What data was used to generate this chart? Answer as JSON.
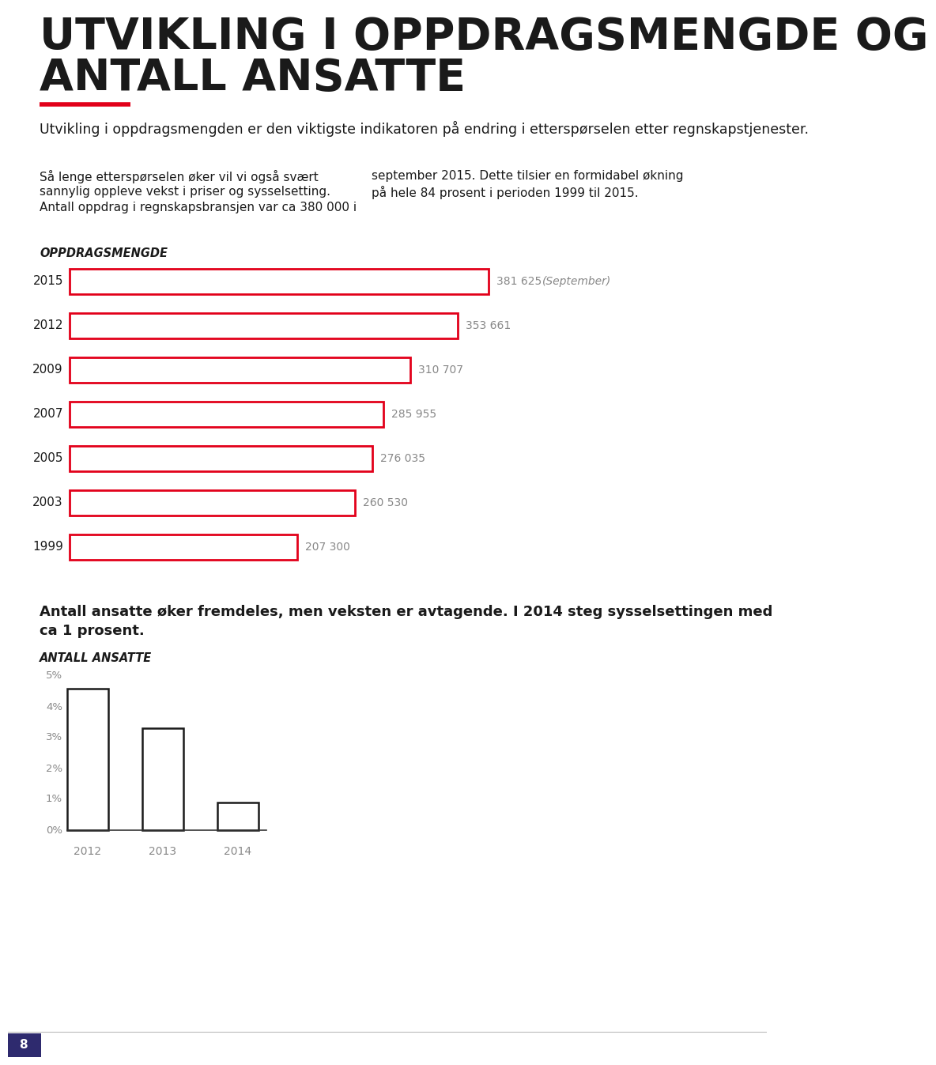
{
  "title_line1": "UTVIKLING I OPPDRAGSMENGDE OG",
  "title_line2": "ANTALL ANSATTE",
  "red_line_color": "#e2001a",
  "intro_text": "Utvikling i oppdragsmengden er den viktigste indikatoren på endring i etterspørselen etter regnskapstjenester.",
  "body_left_lines": [
    "Så lenge etterspørselen øker vil vi også svært",
    "sannylig oppleve vekst i priser og sysselsetting.",
    "Antall oppdrag i regnskapsbransjen var ca 380 000 i"
  ],
  "body_right_lines": [
    "september 2015. Dette tilsier en formidabel økning",
    "på hele 84 prosent i perioden 1999 til 2015."
  ],
  "section1_label": "OPPDRAGSMENGDE",
  "bar_years": [
    "2015",
    "2012",
    "2009",
    "2007",
    "2005",
    "2003",
    "1999"
  ],
  "bar_values": [
    381625,
    353661,
    310707,
    285955,
    276035,
    260530,
    207300
  ],
  "bar_labels": [
    "381 625",
    "353 661",
    "310 707",
    "285 955",
    "276 035",
    "260 530",
    "207 300"
  ],
  "bar_color_fill": "#ffffff",
  "bar_color_edge": "#e2001a",
  "bar_note": "(September)",
  "section2_text_line1": "Antall ansatte øker fremdeles, men veksten er avtagende. I 2014 steg sysselsettingen med",
  "section2_text_line2": "ca 1 prosent.",
  "section2_label": "ANTALL ANSATTE",
  "bar2_years": [
    "2012",
    "2013",
    "2014"
  ],
  "bar2_values": [
    4.6,
    3.3,
    0.9
  ],
  "bar2_color_fill": "#ffffff",
  "bar2_color_edge": "#1a1a1a",
  "yticks2": [
    0,
    1,
    2,
    3,
    4,
    5
  ],
  "ytick_labels2": [
    "0%",
    "1%",
    "2%",
    "3%",
    "4%",
    "5%"
  ],
  "page_number": "8",
  "background_color": "#ffffff",
  "text_color": "#1a1a1a",
  "label_color": "#888888",
  "page_box_color": "#2e2a6e"
}
